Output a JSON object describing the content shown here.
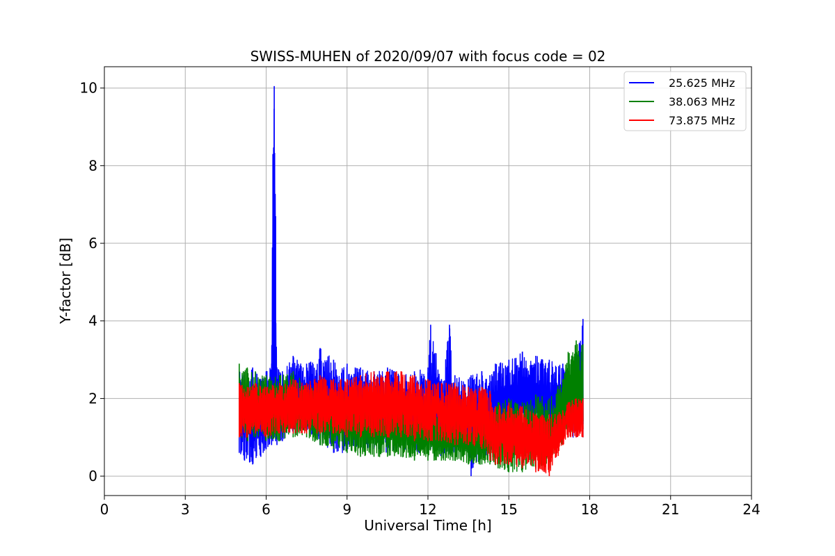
{
  "chart_data": {
    "type": "line",
    "title": "SWISS-MUHEN of 2020/09/07 with focus code = 02",
    "xlabel": "Universal Time [h]",
    "ylabel": "Y-factor [dB]",
    "xlim": [
      0,
      24
    ],
    "ylim": [
      -0.5,
      10.55
    ],
    "xticks": [
      0,
      3,
      6,
      9,
      12,
      15,
      18,
      21,
      24
    ],
    "yticks": [
      0,
      2,
      4,
      6,
      8,
      10
    ],
    "grid": true,
    "legend_position": "top-right",
    "series": [
      {
        "name": "25.625 MHz",
        "color": "#0000ff",
        "x": [
          5.0,
          5.2,
          5.5,
          5.8,
          6.0,
          6.2,
          6.25,
          6.3,
          6.35,
          6.4,
          6.6,
          7.0,
          7.5,
          8.0,
          8.5,
          9.0,
          9.5,
          10.0,
          10.5,
          11.0,
          11.5,
          12.0,
          12.1,
          12.5,
          12.8,
          13.0,
          13.5,
          13.6,
          14.0,
          14.3,
          14.5,
          15.0,
          15.5,
          16.0,
          16.5,
          17.0,
          17.2,
          17.5,
          17.75
        ],
        "y_high": [
          2.7,
          2.6,
          2.8,
          2.5,
          2.7,
          2.9,
          8.3,
          10.05,
          6.7,
          2.8,
          2.7,
          3.1,
          2.9,
          3.3,
          3.0,
          2.9,
          2.8,
          2.7,
          2.8,
          2.6,
          2.7,
          2.8,
          3.9,
          2.5,
          3.9,
          2.6,
          2.5,
          2.6,
          2.7,
          2.6,
          2.9,
          3.0,
          3.2,
          3.1,
          3.0,
          2.9,
          2.5,
          3.2,
          4.05
        ],
        "y_low": [
          0.6,
          0.4,
          0.3,
          0.5,
          0.7,
          0.8,
          0.9,
          1.0,
          0.9,
          0.8,
          0.9,
          1.1,
          1.2,
          0.8,
          0.6,
          0.6,
          0.7,
          0.7,
          0.6,
          0.7,
          0.6,
          0.6,
          0.7,
          0.5,
          0.6,
          0.6,
          0.5,
          0.0,
          0.5,
          0.5,
          1.0,
          1.0,
          1.0,
          1.2,
          1.1,
          1.0,
          1.0,
          1.0,
          1.0
        ]
      },
      {
        "name": "38.063 MHz",
        "color": "#008000",
        "x": [
          5.0,
          5.3,
          5.6,
          6.0,
          6.5,
          7.0,
          7.5,
          8.0,
          8.5,
          9.0,
          9.5,
          10.0,
          10.5,
          11.0,
          11.5,
          12.0,
          12.5,
          13.0,
          13.5,
          14.0,
          14.3,
          14.6,
          15.0,
          15.5,
          16.0,
          16.5,
          17.0,
          17.2,
          17.5,
          17.75
        ],
        "y_high": [
          2.9,
          2.8,
          2.7,
          2.6,
          2.6,
          2.7,
          2.4,
          2.3,
          2.1,
          2.0,
          1.9,
          1.9,
          1.8,
          1.8,
          1.7,
          1.7,
          1.6,
          1.6,
          1.5,
          1.5,
          1.5,
          1.9,
          2.0,
          1.9,
          2.1,
          2.0,
          2.5,
          3.2,
          3.5,
          3.4
        ],
        "y_low": [
          1.0,
          0.9,
          1.0,
          0.9,
          0.9,
          1.0,
          1.0,
          0.8,
          0.7,
          0.6,
          0.5,
          0.5,
          0.5,
          0.5,
          0.4,
          0.4,
          0.4,
          0.4,
          0.3,
          0.3,
          0.3,
          0.2,
          0.1,
          0.1,
          0.2,
          0.2,
          0.8,
          1.0,
          1.2,
          1.2
        ]
      },
      {
        "name": "73.875 MHz",
        "color": "#ff0000",
        "x": [
          5.0,
          5.3,
          5.6,
          6.0,
          6.5,
          7.0,
          7.5,
          8.0,
          8.5,
          9.0,
          9.5,
          10.0,
          10.5,
          11.0,
          11.5,
          12.0,
          12.5,
          13.0,
          13.5,
          14.0,
          14.3,
          14.5,
          15.0,
          15.5,
          16.0,
          16.5,
          17.0,
          17.2,
          17.5,
          17.75
        ],
        "y_high": [
          2.4,
          2.3,
          2.4,
          2.3,
          2.4,
          2.5,
          2.4,
          2.6,
          2.5,
          2.5,
          2.6,
          2.7,
          2.7,
          2.7,
          2.6,
          2.5,
          2.4,
          2.4,
          2.3,
          2.3,
          2.2,
          1.8,
          1.9,
          1.8,
          1.6,
          1.6,
          1.7,
          1.9,
          2.0,
          2.0
        ],
        "y_low": [
          1.0,
          1.0,
          1.1,
          1.0,
          1.1,
          1.1,
          1.1,
          1.1,
          1.1,
          1.0,
          1.0,
          1.0,
          1.0,
          1.0,
          0.9,
          0.9,
          0.9,
          0.8,
          0.8,
          0.7,
          0.4,
          0.3,
          0.3,
          0.2,
          0.1,
          0.0,
          0.8,
          1.0,
          1.0,
          1.0
        ]
      }
    ]
  }
}
